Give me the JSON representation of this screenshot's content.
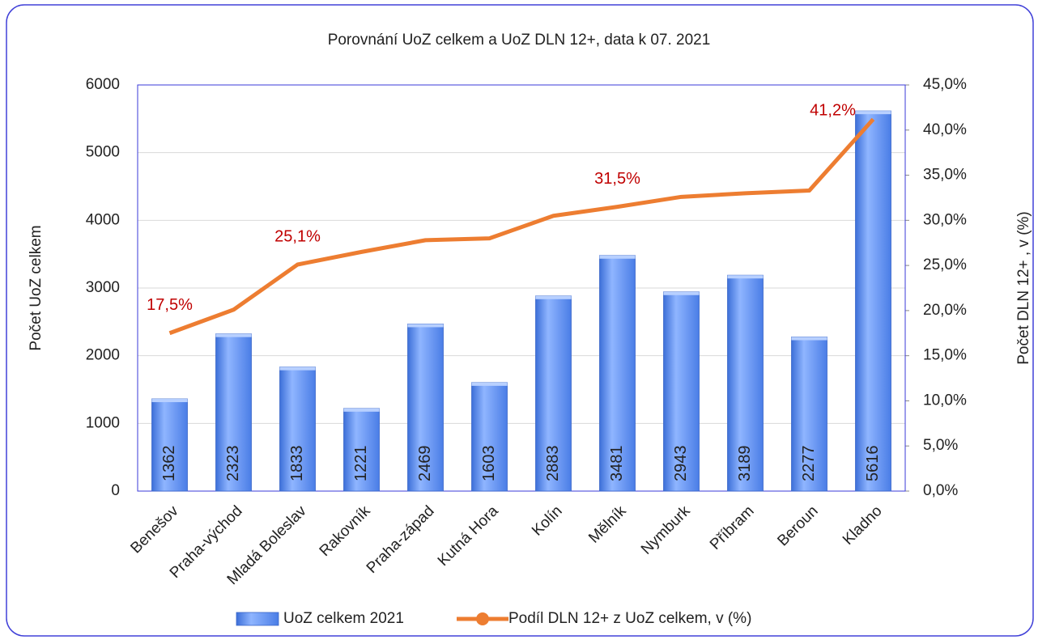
{
  "chart_data": {
    "type": "bar",
    "title": "Porovnání UoZ celkem a UoZ DLN 12+, data k 07. 2021",
    "ylabel": "Počet UoZ celkem",
    "y2label": "Počet DLN 12+ ,  v (%)",
    "categories": [
      "Benešov",
      "Praha-východ",
      "Mladá Boleslav",
      "Rakovník",
      "Praha-západ",
      "Kutná Hora",
      "Kolín",
      "Mělník",
      "Nymburk",
      "Příbram",
      "Beroun",
      "Kladno"
    ],
    "series": [
      {
        "name": "UoZ celkem 2021",
        "type": "bar",
        "color": "#5b8ff0",
        "values": [
          1362,
          2323,
          1833,
          1221,
          2469,
          1603,
          2883,
          3481,
          2943,
          3189,
          2277,
          5616
        ]
      },
      {
        "name": "Podíl DLN 12+ z UoZ celkem, v  (%)",
        "type": "line",
        "axis": "y2",
        "color": "#ed7d31",
        "values": [
          17.5,
          20.1,
          25.1,
          26.5,
          27.8,
          28.0,
          30.5,
          31.5,
          32.6,
          33.0,
          33.3,
          41.2
        ],
        "value_labels": [
          "17,5%",
          null,
          "25,1%",
          null,
          null,
          null,
          null,
          "31,5%",
          null,
          null,
          null,
          "41,2%"
        ]
      }
    ],
    "ylim": [
      0,
      6000
    ],
    "yticks": [
      0,
      1000,
      2000,
      3000,
      4000,
      5000,
      6000
    ],
    "y2lim": [
      0,
      45
    ],
    "y2ticks": [
      {
        "value": 0,
        "label": "0,0%"
      },
      {
        "value": 5,
        "label": "5,0%"
      },
      {
        "value": 10,
        "label": "10,0%"
      },
      {
        "value": 15,
        "label": "15,0%"
      },
      {
        "value": 20,
        "label": "20,0%"
      },
      {
        "value": 25,
        "label": "25,0%"
      },
      {
        "value": 30,
        "label": "30,0%"
      },
      {
        "value": 35,
        "label": "35,0%"
      },
      {
        "value": 40,
        "label": "40,0%"
      },
      {
        "value": 45,
        "label": "45,0%"
      }
    ],
    "grid": true,
    "legend": "bottom"
  }
}
